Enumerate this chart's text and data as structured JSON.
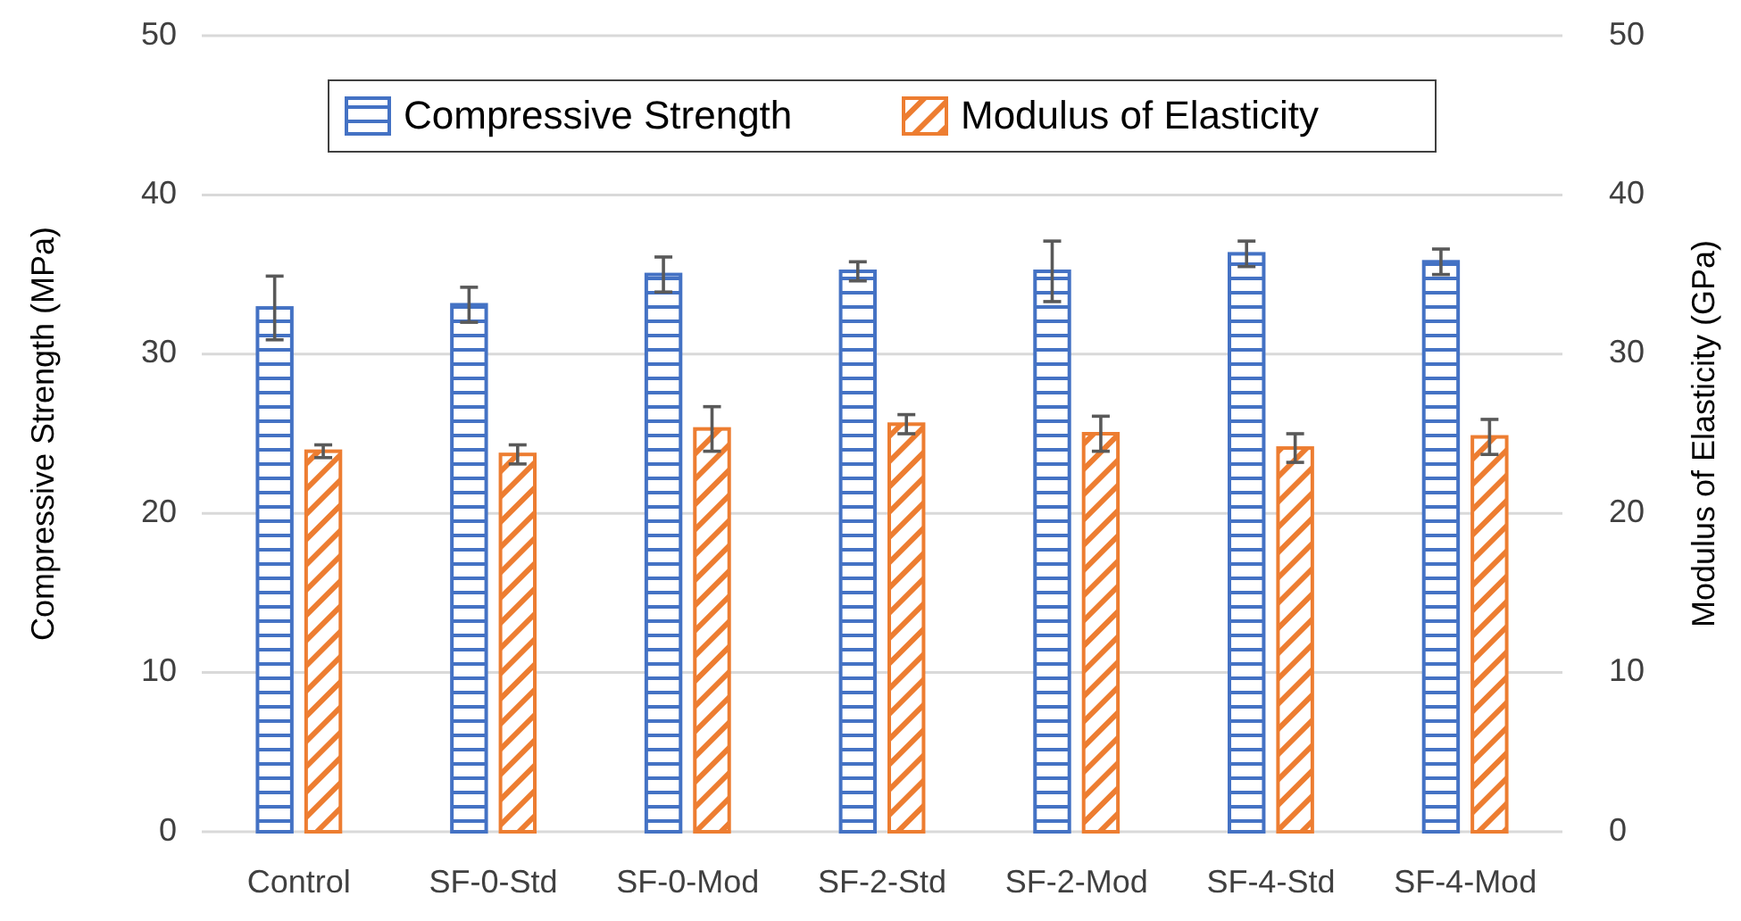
{
  "chart_data": {
    "type": "bar",
    "ylabel": "Compressive Strength (MPa)",
    "y2label": "Modulus of Elasticity (GPa)",
    "categories": [
      "Control",
      "SF-0-Std",
      "SF-0-Mod",
      "SF-2-Std",
      "SF-2-Mod",
      "SF-4-Std",
      "SF-4-Mod"
    ],
    "series": [
      {
        "name": "Compressive Strength",
        "color": "#4472c4",
        "values": [
          32.9,
          33.1,
          35.0,
          35.2,
          35.2,
          36.3,
          35.8
        ],
        "errors": [
          2.0,
          1.1,
          1.1,
          0.6,
          1.9,
          0.8,
          0.8
        ]
      },
      {
        "name": "Modulus of Elasticity",
        "color": "#ed7d31",
        "axis": "y2",
        "values": [
          23.9,
          23.7,
          25.3,
          25.6,
          25.0,
          24.1,
          24.8
        ],
        "errors": [
          0.4,
          0.6,
          1.4,
          0.6,
          1.1,
          0.9,
          1.1
        ]
      }
    ],
    "ylim": [
      0,
      50
    ],
    "yticks": [
      0,
      10,
      20,
      30,
      40,
      50
    ],
    "y2lim": [
      0,
      50
    ],
    "y2ticks": [
      0,
      10,
      20,
      30,
      40,
      50
    ],
    "grid": "y",
    "legend": "top"
  }
}
